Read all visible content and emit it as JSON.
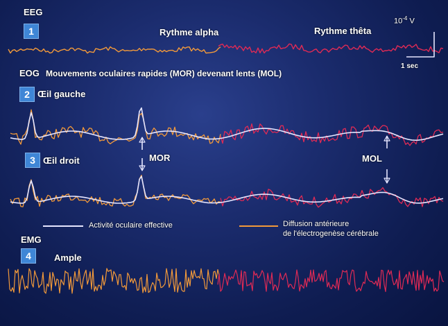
{
  "sections": {
    "eeg": {
      "label": "EEG",
      "number": "1",
      "rhythm_alpha": "Rythme alpha",
      "rhythm_theta": "Rythme thêta"
    },
    "eog": {
      "label": "EOG",
      "title": "Mouvements oculaires rapides (MOR) devenant lents (MOL)",
      "left_eye": {
        "number": "2",
        "label": "Œil gauche"
      },
      "right_eye": {
        "number": "3",
        "label": "Œil droit"
      },
      "mor": "MOR",
      "mol": "MOL"
    },
    "emg": {
      "label": "EMG",
      "number": "4",
      "ample": "Ample"
    }
  },
  "scale": {
    "voltage_prefix": "10",
    "voltage_exp": "-4",
    "voltage_unit": "V",
    "time": "1 sec"
  },
  "legend": {
    "effective": "Activité oculaire effective",
    "diffusion_line1": "Diffusion antérieure",
    "diffusion_line2": "de l'électrogenèse cérébrale"
  },
  "colors": {
    "orange": "#f39a3a",
    "red": "#e02a55",
    "white": "#e6e6ff",
    "badge": "#3f86d6"
  }
}
